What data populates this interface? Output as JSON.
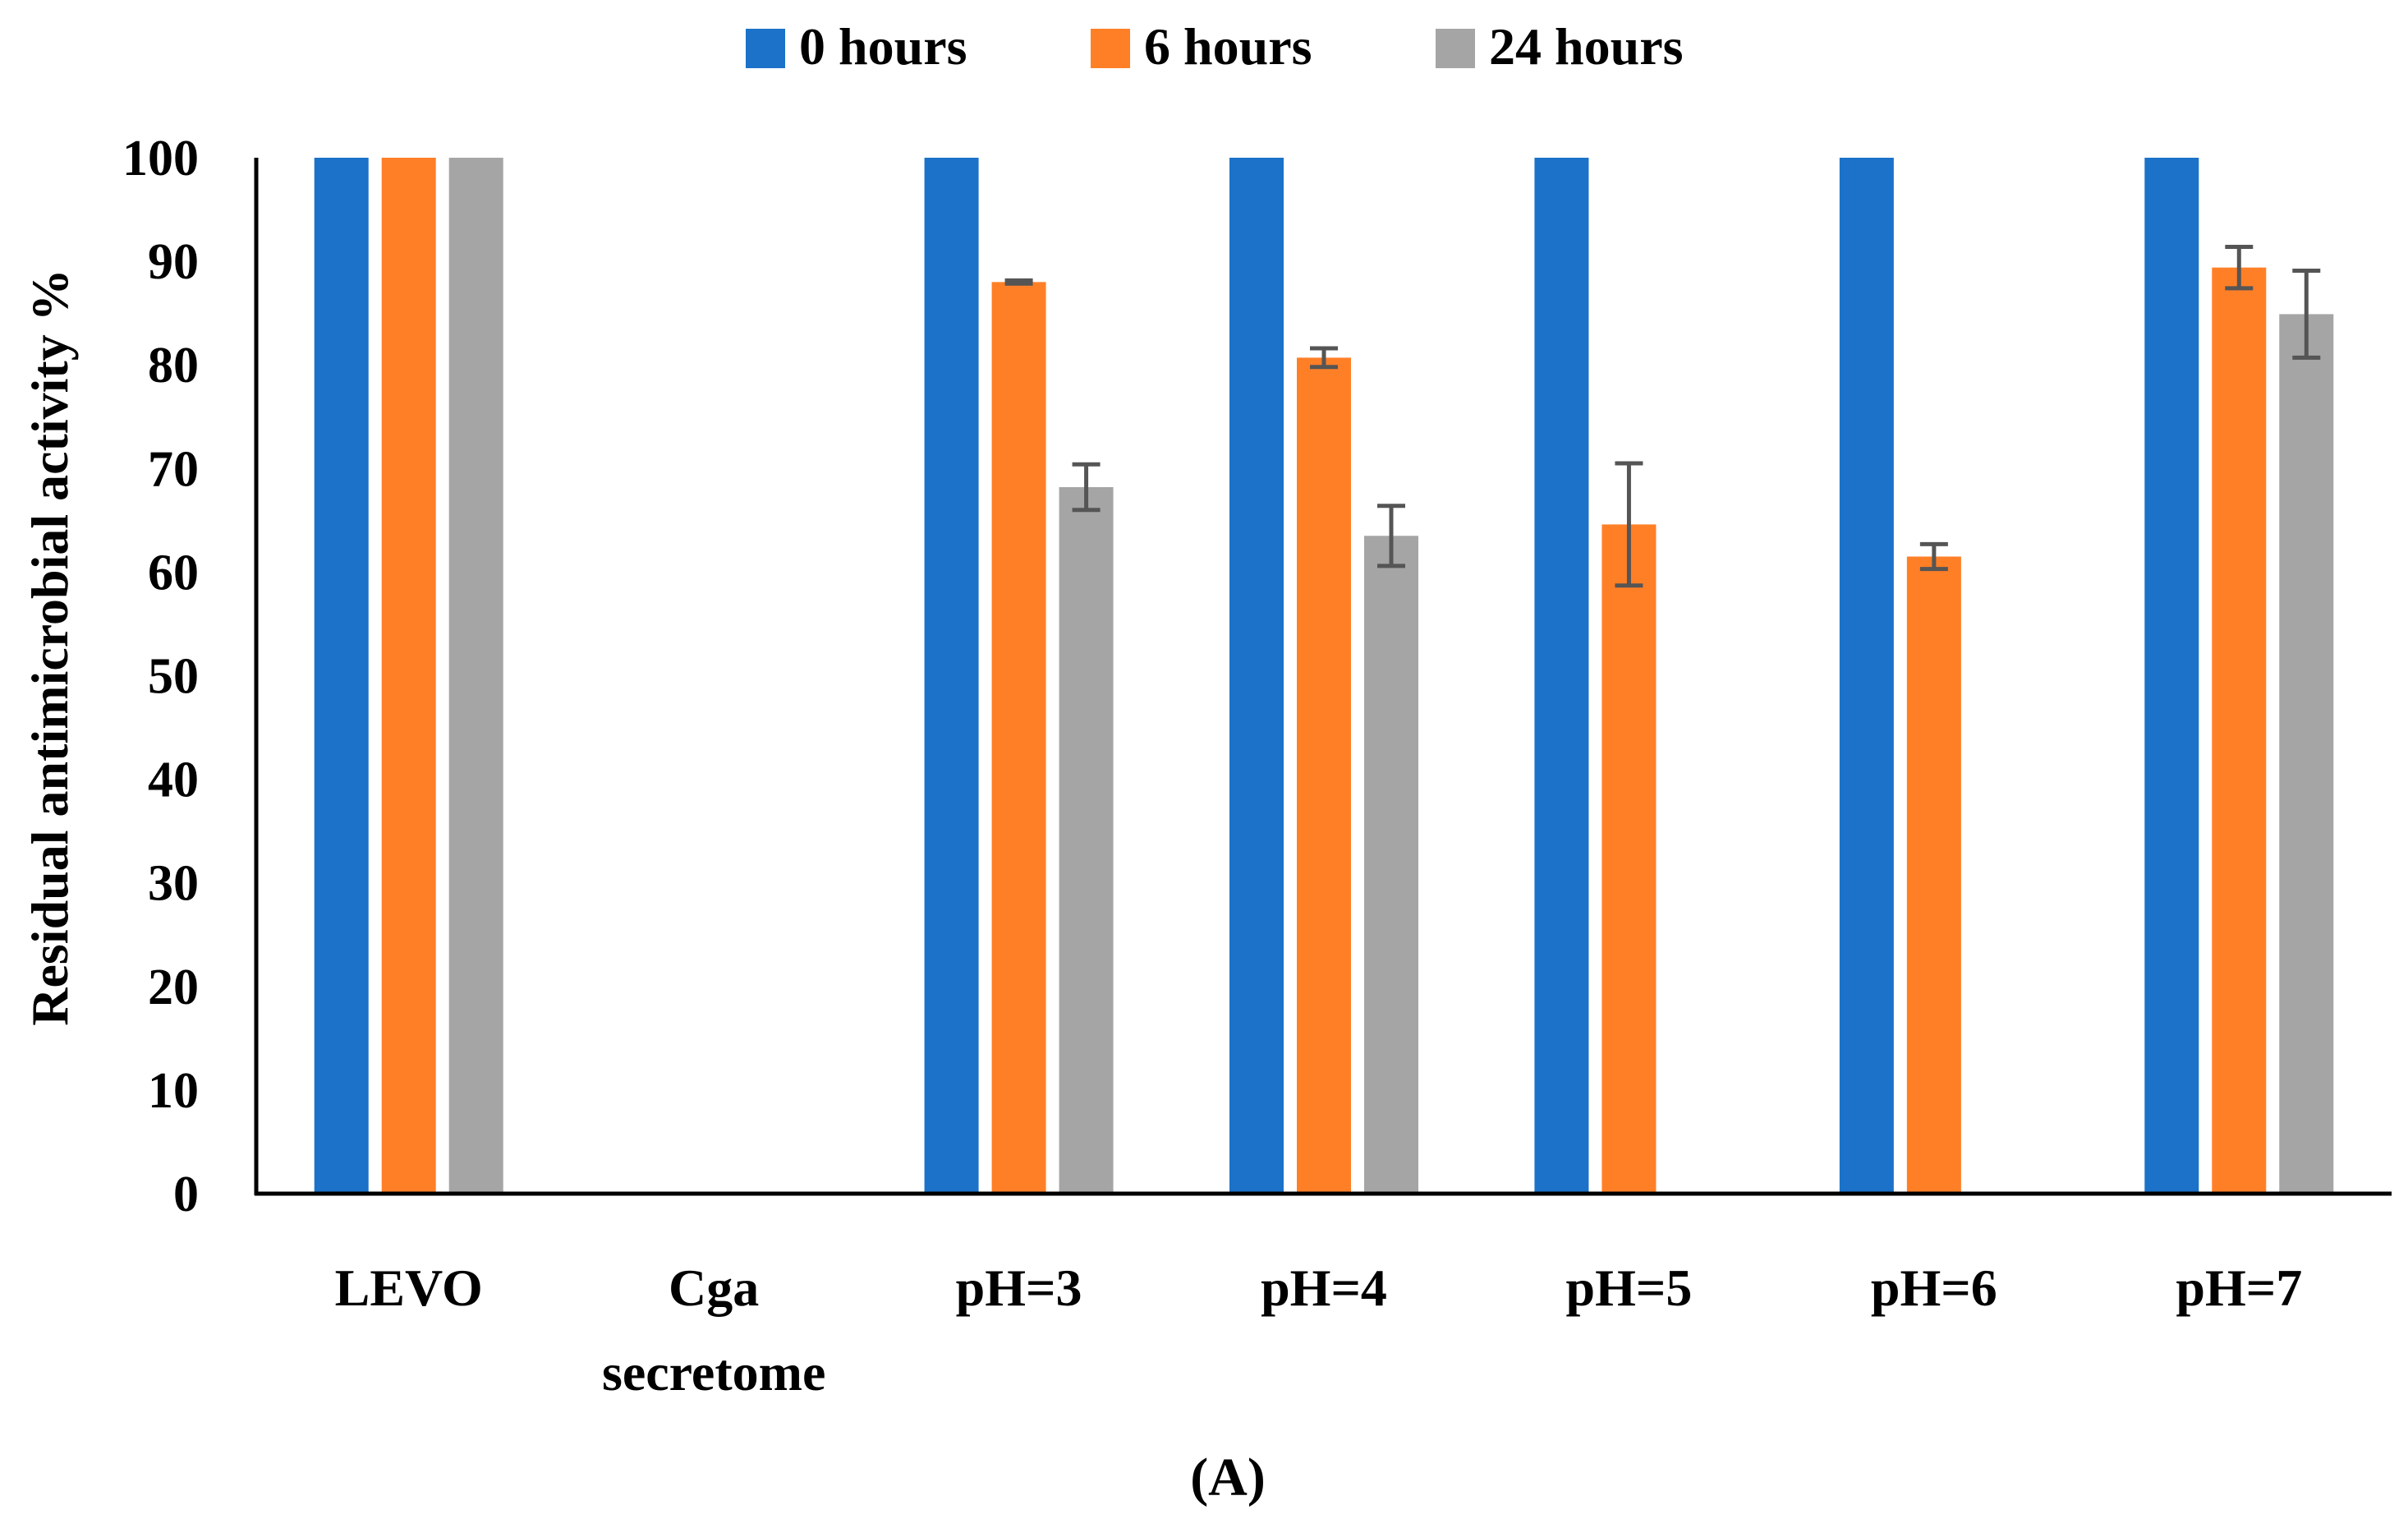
{
  "chart_data": {
    "type": "bar",
    "title": "",
    "panel_label": "(A)",
    "xlabel": "",
    "ylabel": "Residual antimicrobial activity %",
    "ylim": [
      0,
      100
    ],
    "yticks": [
      0,
      10,
      20,
      30,
      40,
      50,
      60,
      70,
      80,
      90,
      100
    ],
    "grid": false,
    "legend_position": "top-center",
    "categories": [
      [
        "LEVO"
      ],
      [
        "Cga",
        "secretome"
      ],
      [
        "pH=3"
      ],
      [
        "pH=4"
      ],
      [
        "pH=5"
      ],
      [
        "pH=6"
      ],
      [
        "pH=7"
      ]
    ],
    "series": [
      {
        "name": "0 hours",
        "color": "#1b72c8",
        "values": [
          100,
          0,
          100,
          100,
          100,
          100,
          100
        ],
        "errors": [
          0,
          0,
          0,
          0,
          0,
          0,
          0
        ]
      },
      {
        "name": "6 hours",
        "color": "#ff7f27",
        "values": [
          100,
          0,
          88,
          80.7,
          64.6,
          61.5,
          89.4
        ],
        "errors": [
          0,
          0,
          0.15,
          0.9,
          5.9,
          1.2,
          2.0
        ]
      },
      {
        "name": "24 hours",
        "color": "#a5a5a5",
        "values": [
          100,
          0,
          68.2,
          63.5,
          0,
          0,
          84.9
        ],
        "errors": [
          0,
          0,
          2.2,
          2.9,
          0,
          0,
          4.2
        ]
      }
    ],
    "error_bar_color": "#555555"
  }
}
